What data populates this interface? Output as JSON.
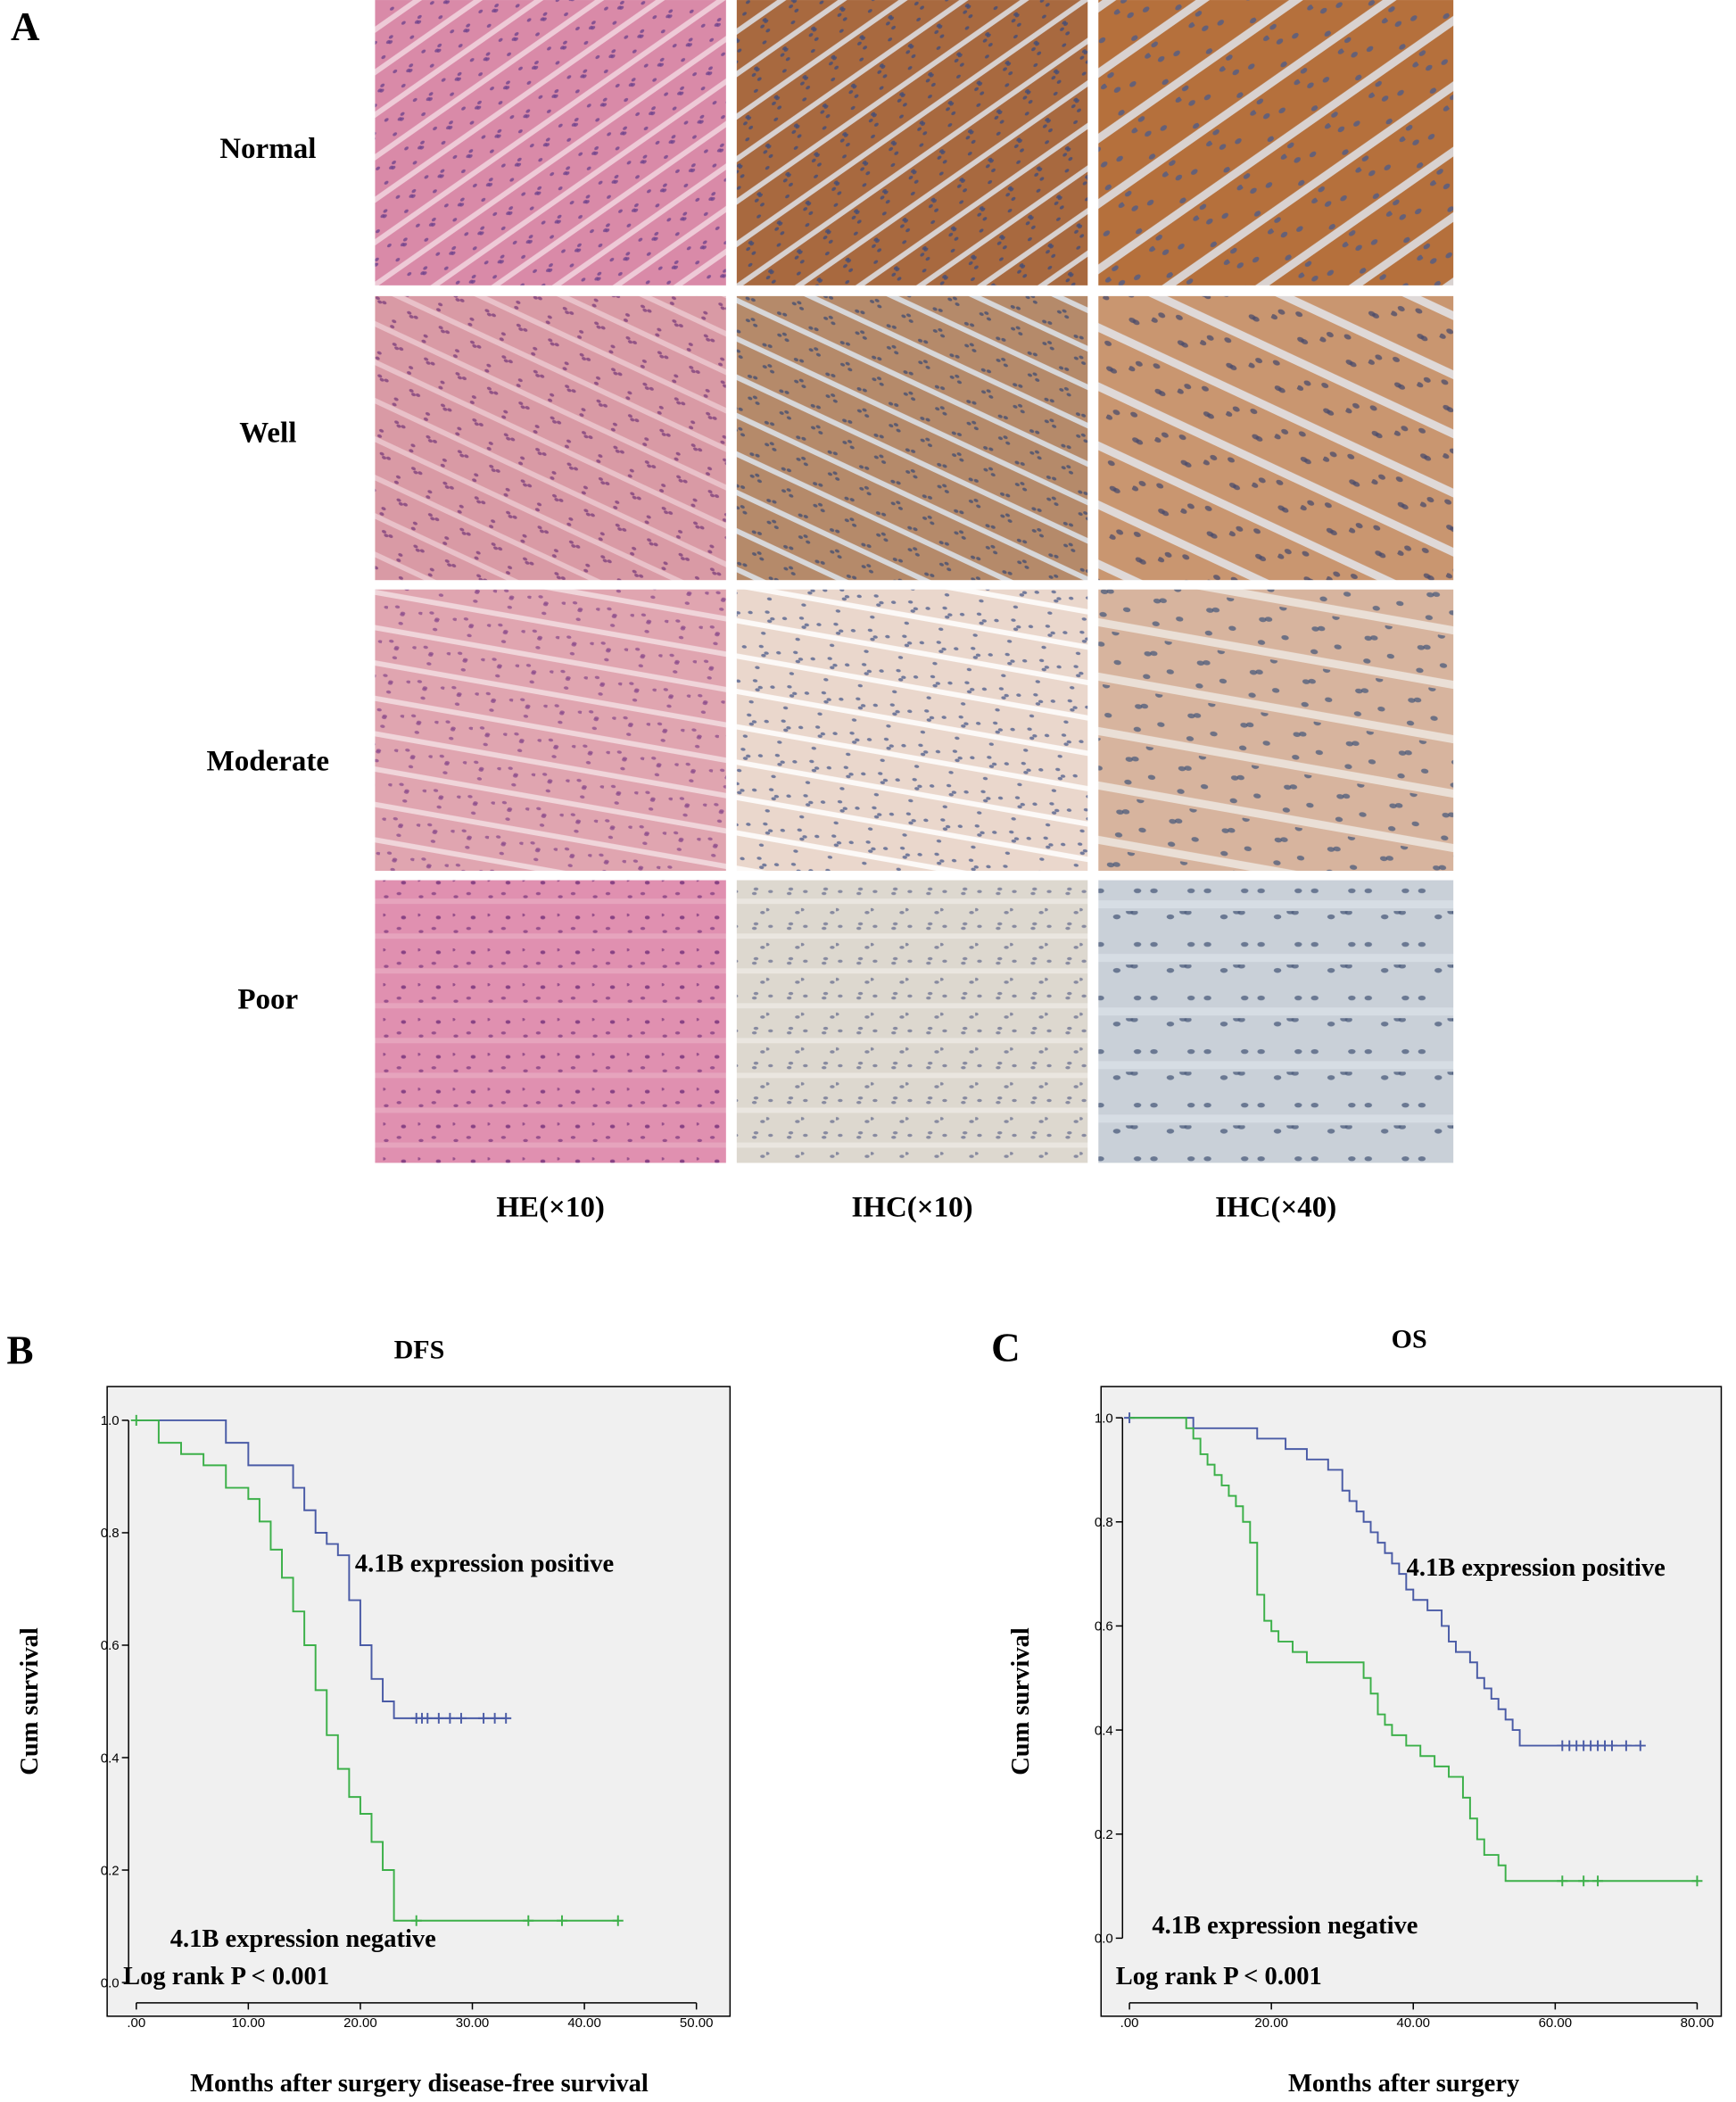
{
  "panel_a": {
    "panel_label": "A",
    "rows": [
      "Normal",
      "Well",
      "Moderate",
      "Poor"
    ],
    "columns": [
      "HE(×10)",
      "IHC(×10)",
      "IHC(×40)"
    ]
  },
  "chart_data": [
    {
      "type": "km-step",
      "panel_label": "B",
      "title": "DFS",
      "xlabel": "Months after surgery disease-free survival",
      "ylabel": "Cum survival",
      "xlim": [
        -2.6,
        53
      ],
      "ylim": [
        -0.06,
        1.06
      ],
      "xticks": [
        {
          "value": 0,
          "label": ".00"
        },
        {
          "value": 10,
          "label": "10.00"
        },
        {
          "value": 20,
          "label": "20.00"
        },
        {
          "value": 30,
          "label": "30.00"
        },
        {
          "value": 40,
          "label": "40.00"
        },
        {
          "value": 50,
          "label": "50.00"
        }
      ],
      "yticks": [
        {
          "value": 0,
          "label": "0.0"
        },
        0.2,
        0.4,
        0.6,
        0.8,
        {
          "value": 1,
          "label": "1.0"
        }
      ],
      "annotations": [
        "4.1B expression positive",
        "4.1B expression negative",
        "Log rank P < 0.001"
      ],
      "series": [
        {
          "name": "4.1B expression positive",
          "color": "#4a5ba6",
          "x": [
            0,
            8,
            10,
            14,
            15,
            16,
            17,
            18,
            19,
            20,
            21,
            22,
            23
          ],
          "values": [
            1,
            0.96,
            0.92,
            0.88,
            0.84,
            0.8,
            0.78,
            0.76,
            0.68,
            0.6,
            0.54,
            0.5,
            0.47
          ],
          "censored": [
            25,
            25.5,
            26,
            27,
            28,
            29,
            31,
            32,
            33
          ]
        },
        {
          "name": "4.1B expression negative",
          "color": "#3cb049",
          "x": [
            0,
            2,
            4,
            6,
            8,
            10,
            11,
            12,
            13,
            14,
            15,
            16,
            17,
            18,
            19,
            20,
            21,
            22,
            23
          ],
          "values": [
            1,
            0.96,
            0.94,
            0.92,
            0.88,
            0.86,
            0.82,
            0.77,
            0.72,
            0.66,
            0.6,
            0.52,
            0.44,
            0.38,
            0.33,
            0.3,
            0.25,
            0.2,
            0.11
          ],
          "censored": [
            0,
            25,
            35,
            38,
            43
          ]
        }
      ]
    },
    {
      "type": "km-step",
      "panel_label": "C",
      "title": "OS",
      "xlabel": "Months after surgery",
      "ylabel": "Cum survival",
      "xlim": [
        -4,
        83.4
      ],
      "ylim": [
        -0.15,
        1.06
      ],
      "xticks": [
        {
          "value": 0,
          "label": ".00"
        },
        {
          "value": 20,
          "label": "20.00"
        },
        {
          "value": 40,
          "label": "40.00"
        },
        {
          "value": 60,
          "label": "60.00"
        },
        {
          "value": 80,
          "label": "80.00"
        }
      ],
      "yticks": [
        {
          "value": 0,
          "label": "0.0"
        },
        0.2,
        0.4,
        0.6,
        0.8,
        {
          "value": 1,
          "label": "1.0"
        }
      ],
      "annotations": [
        "4.1B expression positive",
        "4.1B expression negative",
        "Log rank P < 0.001"
      ],
      "series": [
        {
          "name": "4.1B expression positive",
          "color": "#4a5ba6",
          "x": [
            0,
            9,
            18,
            22,
            25,
            28,
            30,
            31,
            32,
            33,
            34,
            35,
            36,
            37,
            38,
            39,
            40,
            42,
            44,
            45,
            46,
            48,
            49,
            50,
            51,
            52,
            53,
            54,
            55
          ],
          "values": [
            1,
            0.98,
            0.96,
            0.94,
            0.92,
            0.9,
            0.86,
            0.84,
            0.82,
            0.8,
            0.78,
            0.76,
            0.74,
            0.72,
            0.7,
            0.67,
            0.65,
            0.63,
            0.6,
            0.57,
            0.55,
            0.53,
            0.5,
            0.48,
            0.46,
            0.44,
            0.42,
            0.4,
            0.37
          ],
          "censored": [
            0,
            61,
            62,
            63,
            64,
            65,
            66,
            67,
            68,
            70,
            72
          ]
        },
        {
          "name": "4.1B expression negative",
          "color": "#3cb049",
          "x": [
            0,
            8,
            9,
            10,
            11,
            12,
            13,
            14,
            15,
            16,
            17,
            18,
            19,
            20,
            21,
            23,
            25,
            33,
            34,
            35,
            36,
            37,
            39,
            41,
            43,
            45,
            47,
            48,
            49,
            50,
            52,
            53
          ],
          "values": [
            1,
            0.98,
            0.96,
            0.93,
            0.91,
            0.89,
            0.87,
            0.85,
            0.83,
            0.8,
            0.76,
            0.66,
            0.61,
            0.59,
            0.57,
            0.55,
            0.53,
            0.5,
            0.47,
            0.43,
            0.41,
            0.39,
            0.37,
            0.35,
            0.33,
            0.31,
            0.27,
            0.23,
            0.19,
            0.16,
            0.14,
            0.11
          ],
          "censored": [
            61,
            64,
            66,
            80
          ]
        }
      ]
    }
  ]
}
